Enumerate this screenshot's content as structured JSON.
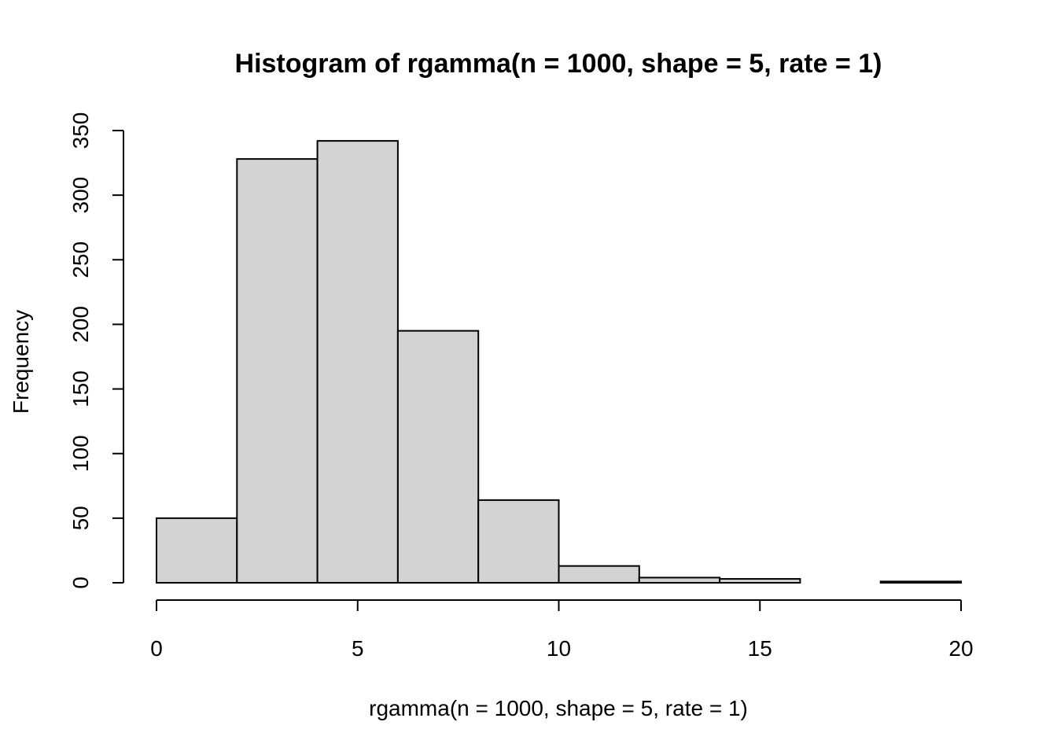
{
  "chart_data": {
    "type": "bar",
    "title": "Histogram of rgamma(n = 1000, shape = 5, rate = 1)",
    "xlabel": "rgamma(n = 1000, shape = 5, rate = 1)",
    "ylabel": "Frequency",
    "bins": [
      {
        "x0": 0,
        "x1": 2,
        "count": 50
      },
      {
        "x0": 2,
        "x1": 4,
        "count": 328
      },
      {
        "x0": 4,
        "x1": 6,
        "count": 342
      },
      {
        "x0": 6,
        "x1": 8,
        "count": 195
      },
      {
        "x0": 8,
        "x1": 10,
        "count": 64
      },
      {
        "x0": 10,
        "x1": 12,
        "count": 13
      },
      {
        "x0": 12,
        "x1": 14,
        "count": 4
      },
      {
        "x0": 14,
        "x1": 16,
        "count": 3
      },
      {
        "x0": 16,
        "x1": 18,
        "count": 0
      },
      {
        "x0": 18,
        "x1": 20,
        "count": 1
      }
    ],
    "xlim": [
      0,
      20
    ],
    "ylim": [
      0,
      350
    ],
    "x_ticks": [
      0,
      5,
      10,
      15,
      20
    ],
    "y_ticks": [
      0,
      50,
      100,
      150,
      200,
      250,
      300,
      350
    ],
    "bar_color": "#d3d3d3",
    "border_color": "#000000",
    "grid": false,
    "legend": "none"
  }
}
